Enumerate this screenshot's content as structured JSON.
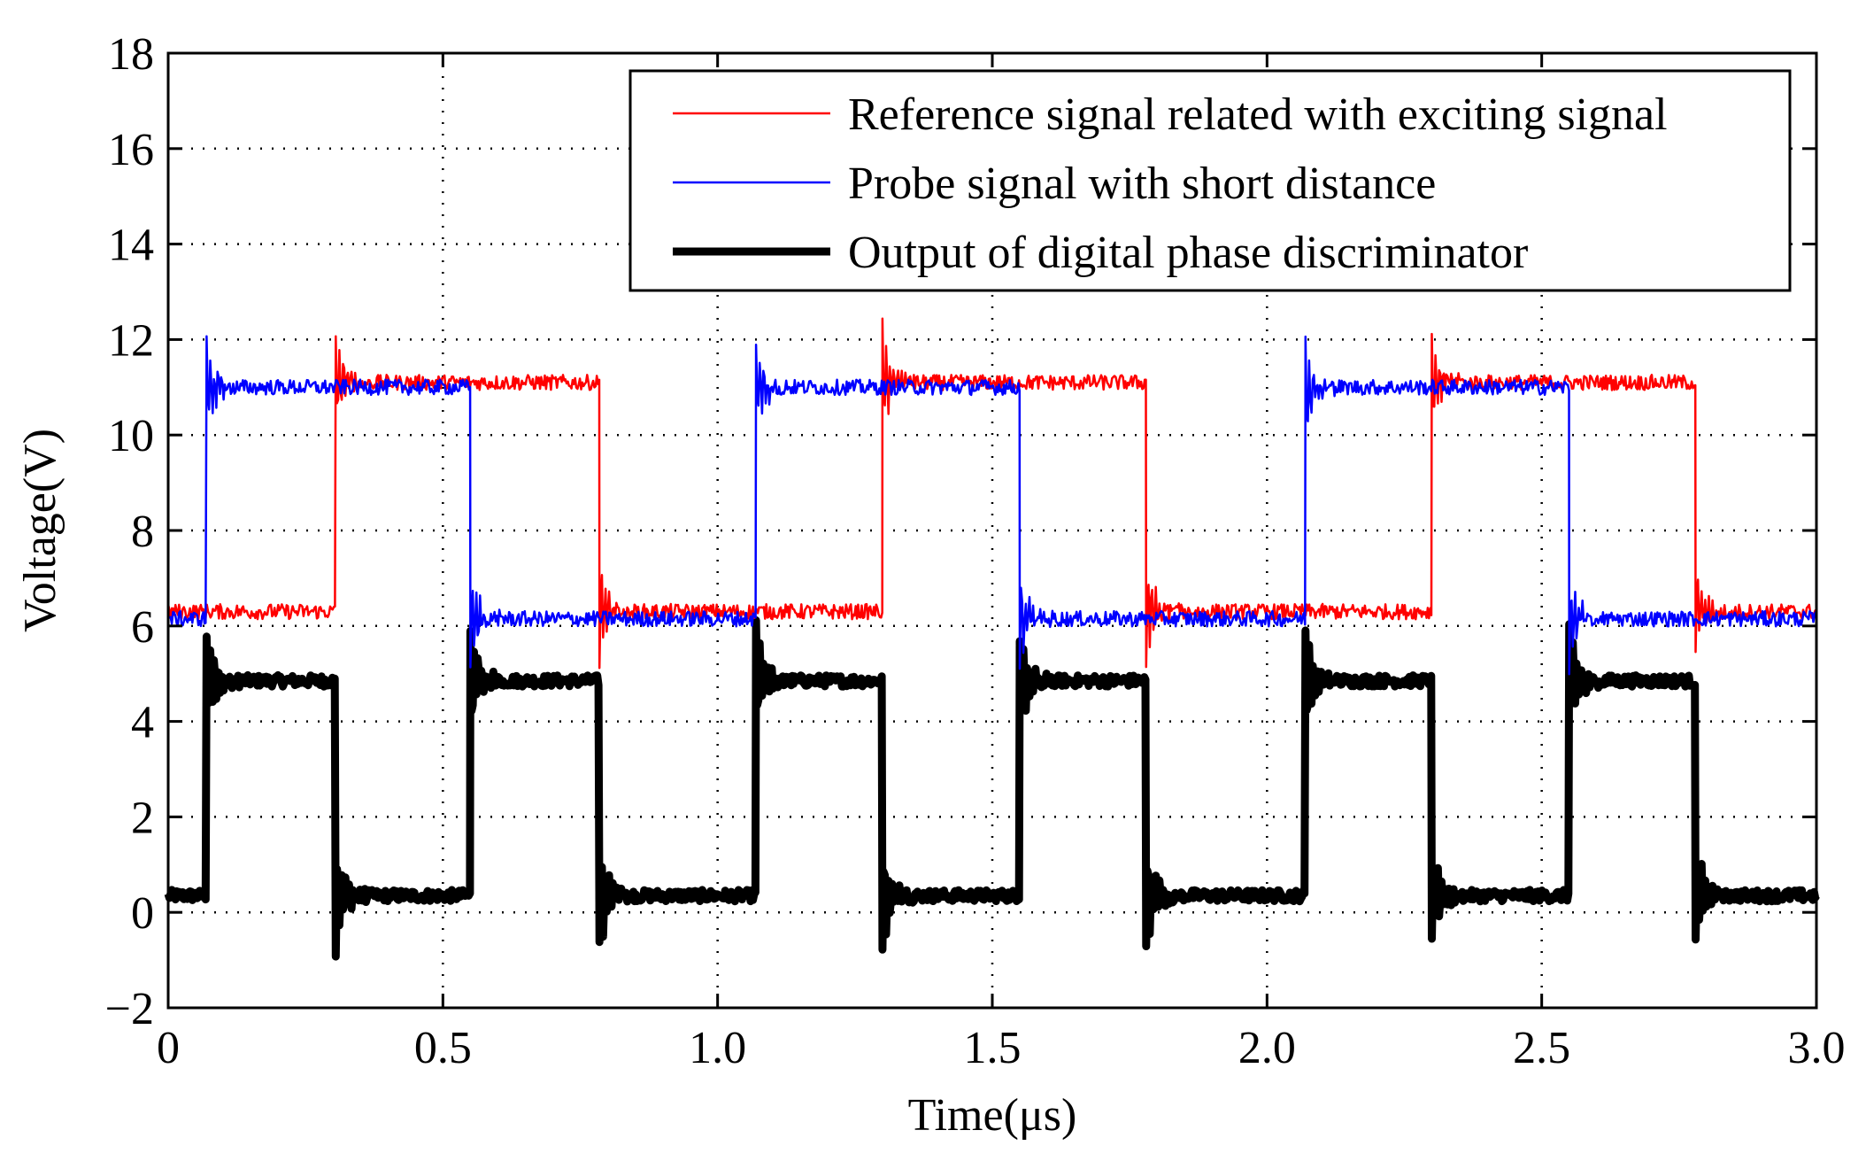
{
  "chart_data": {
    "type": "line",
    "title": "",
    "xlabel": "Time(μs)",
    "ylabel": "Voltage(V)",
    "xlim": [
      0,
      3.0
    ],
    "ylim": [
      -2,
      18
    ],
    "xticks": [
      0,
      0.5,
      1.0,
      1.5,
      2.0,
      2.5,
      3.0
    ],
    "xtick_labels": [
      "0",
      "0.5",
      "1.0",
      "1.5",
      "2.0",
      "2.5",
      "3.0"
    ],
    "yticks": [
      -2,
      0,
      2,
      4,
      6,
      8,
      10,
      12,
      14,
      16,
      18
    ],
    "ytick_labels": [
      "−2",
      "0",
      "2",
      "4",
      "6",
      "8",
      "10",
      "12",
      "14",
      "16",
      "18"
    ],
    "grid": true,
    "legend_position": "top-right",
    "series": [
      {
        "name": "Reference signal related with exciting signal",
        "color": "#ff0000",
        "low": 6.3,
        "high": 11.1,
        "segments": [
          {
            "level": "low",
            "t0": 0.0,
            "t1": 0.305
          },
          {
            "level": "high",
            "t0": 0.305,
            "t1": 0.785
          },
          {
            "level": "low",
            "t0": 0.785,
            "t1": 1.3
          },
          {
            "level": "high",
            "t0": 1.3,
            "t1": 1.78
          },
          {
            "level": "low",
            "t0": 1.78,
            "t1": 2.3
          },
          {
            "level": "high",
            "t0": 2.3,
            "t1": 2.78
          },
          {
            "level": "low",
            "t0": 2.78,
            "t1": 3.0
          }
        ]
      },
      {
        "name": "Probe signal with short distance",
        "color": "#0000ff",
        "low": 6.15,
        "high": 11.0,
        "segments": [
          {
            "level": "low",
            "t0": 0.0,
            "t1": 0.07
          },
          {
            "level": "high",
            "t0": 0.07,
            "t1": 0.55
          },
          {
            "level": "low",
            "t0": 0.55,
            "t1": 1.07
          },
          {
            "level": "high",
            "t0": 1.07,
            "t1": 1.55
          },
          {
            "level": "low",
            "t0": 1.55,
            "t1": 2.07
          },
          {
            "level": "high",
            "t0": 2.07,
            "t1": 2.55
          },
          {
            "level": "low",
            "t0": 2.55,
            "t1": 3.0
          }
        ]
      },
      {
        "name": "Output of digital phase discriminator",
        "color": "#000000",
        "low": 0.35,
        "high": 4.85,
        "segments": [
          {
            "level": "low",
            "t0": 0.0,
            "t1": 0.07
          },
          {
            "level": "high",
            "t0": 0.07,
            "t1": 0.305
          },
          {
            "level": "low",
            "t0": 0.305,
            "t1": 0.55
          },
          {
            "level": "high",
            "t0": 0.55,
            "t1": 0.785
          },
          {
            "level": "low",
            "t0": 0.785,
            "t1": 1.07
          },
          {
            "level": "high",
            "t0": 1.07,
            "t1": 1.3
          },
          {
            "level": "low",
            "t0": 1.3,
            "t1": 1.55
          },
          {
            "level": "high",
            "t0": 1.55,
            "t1": 1.78
          },
          {
            "level": "low",
            "t0": 1.78,
            "t1": 2.07
          },
          {
            "level": "high",
            "t0": 2.07,
            "t1": 2.3
          },
          {
            "level": "low",
            "t0": 2.3,
            "t1": 2.55
          },
          {
            "level": "high",
            "t0": 2.55,
            "t1": 2.78
          },
          {
            "level": "low",
            "t0": 2.78,
            "t1": 3.0
          }
        ]
      }
    ]
  }
}
